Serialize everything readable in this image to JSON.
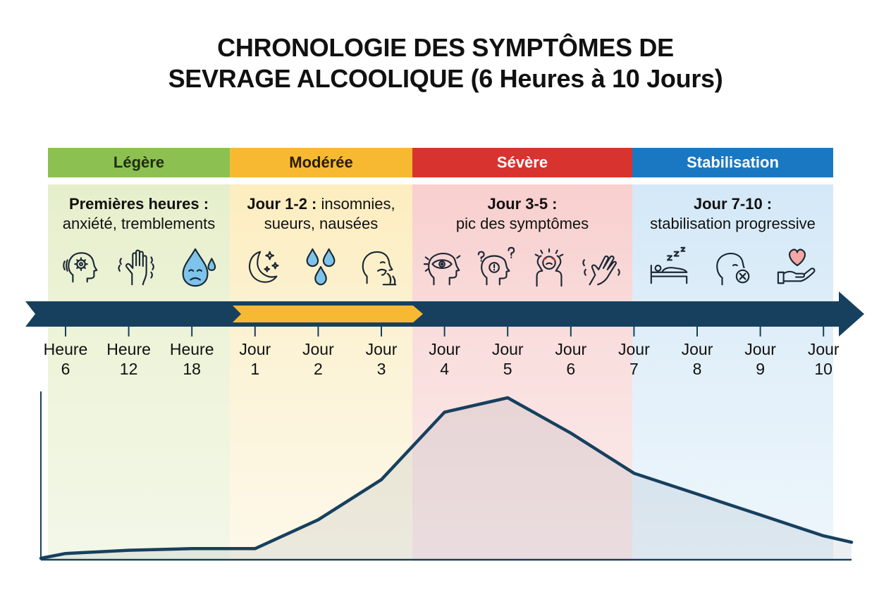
{
  "title": {
    "line1": "CHRONOLOGIE DES SYMPTÔMES DE",
    "line2": "SEVRAGE ALCOOLIQUE (6 Heures à 10 Jours)"
  },
  "colors": {
    "legere": "#8cc152",
    "moderee": "#f7b932",
    "severe": "#d8332f",
    "stabilisation": "#1a78c2",
    "navy": "#17405e"
  },
  "phases": [
    {
      "label": "Légère",
      "desc_bold": "Premières heures :",
      "desc_rest": "",
      "desc_line2": "anxiété, tremblements",
      "icons": [
        "anxious-head-icon",
        "trembling-hand-icon",
        "sweat-drop-face-icon"
      ]
    },
    {
      "label": "Modérée",
      "desc_bold": "Jour 1-2 :",
      "desc_rest": " insomnies,",
      "desc_line2": "sueurs, nausées",
      "icons": [
        "moon-stars-icon",
        "sweat-drops-icon",
        "nausea-head-icon"
      ]
    },
    {
      "label": "Sévère",
      "desc_bold": "Jour 3-5 :",
      "desc_rest": "",
      "desc_line2": "pic des symptômes",
      "icons": [
        "hallucination-eye-icon",
        "confusion-head-icon",
        "agitation-person-icon",
        "seizure-hand-icon"
      ]
    },
    {
      "label": "Stabilisation",
      "desc_bold": "Jour 7-10 :",
      "desc_rest": "",
      "desc_line2": "stabilisation progressive",
      "icons": [
        "sleep-bed-icon",
        "recovery-head-icon",
        "heart-hand-icon"
      ]
    }
  ],
  "chart_data": {
    "type": "area",
    "categories": [
      "Heure 6",
      "Heure 12",
      "Heure 18",
      "Jour 1",
      "Jour 2",
      "Jour 3",
      "Jour 4",
      "Jour 5",
      "Jour 6",
      "Jour 7",
      "Jour 8",
      "Jour 9",
      "Jour 10"
    ],
    "tick_labels": [
      [
        "Heure",
        "6"
      ],
      [
        "Heure",
        "12"
      ],
      [
        "Heure",
        "18"
      ],
      [
        "Jour",
        "1"
      ],
      [
        "Jour",
        "2"
      ],
      [
        "Jour",
        "3"
      ],
      [
        "Jour",
        "4"
      ],
      [
        "Jour",
        "5"
      ],
      [
        "Jour",
        "6"
      ],
      [
        "Jour",
        "7"
      ],
      [
        "Jour",
        "8"
      ],
      [
        "Jour",
        "9"
      ],
      [
        "Jour",
        "10"
      ]
    ],
    "values": [
      3,
      5,
      6,
      6,
      24,
      49,
      91,
      100,
      78,
      53,
      40,
      27,
      14
    ],
    "start_value": 0,
    "end_value": 10,
    "ylim": [
      0,
      100
    ],
    "grid": false,
    "phase_spans": [
      {
        "phase": "Légère",
        "from": -0.25,
        "to": 2.65
      },
      {
        "phase": "Modérée",
        "from": 2.65,
        "to": 5.5
      },
      {
        "phase": "Sévère",
        "from": 5.5,
        "to": 9.0
      },
      {
        "phase": "Stabilisation",
        "from": 9.0,
        "to": 12.15
      }
    ]
  }
}
